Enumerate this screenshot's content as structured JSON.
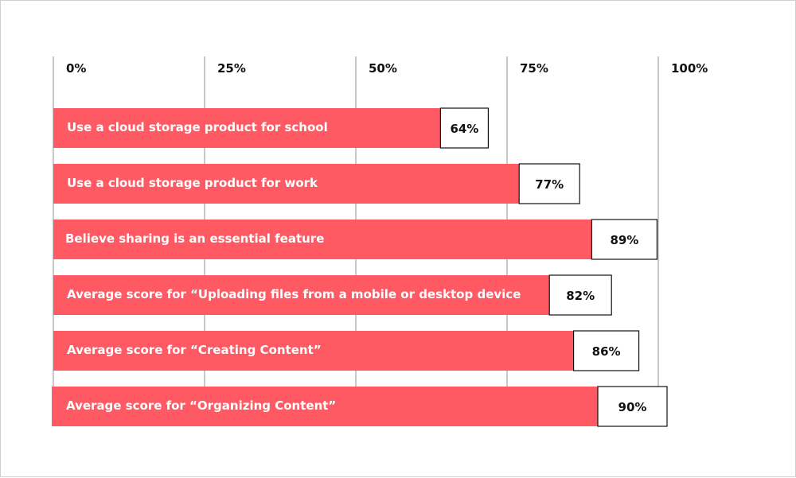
{
  "colors": {
    "bar": "#ff5a63",
    "grid": "#c8c8c8",
    "value_box_border": "#111111",
    "value_box_fill": "#ffffff",
    "text_dark": "#111111",
    "text_light": "#ffffff"
  },
  "chart_data": {
    "type": "bar",
    "orientation": "horizontal",
    "title": "",
    "xlabel": "",
    "ylabel": "",
    "xlim": [
      0,
      100
    ],
    "grid": true,
    "ticks": [
      "0%",
      "25%",
      "50%",
      "75%",
      "100%"
    ],
    "tick_values": [
      0,
      25,
      50,
      75,
      100
    ],
    "categories": [
      "Use a cloud storage product for school",
      "Use a cloud storage product for work",
      "Believe sharing is an essential feature",
      "Average score for “Uploading files from a mobile or desktop device",
      "Average score for “Creating Content”",
      "Average score for “Organizing Content”"
    ],
    "values": [
      64,
      77,
      89,
      82,
      86,
      90
    ],
    "value_labels": [
      "64%",
      "77%",
      "89%",
      "82%",
      "86%",
      "90%"
    ]
  }
}
